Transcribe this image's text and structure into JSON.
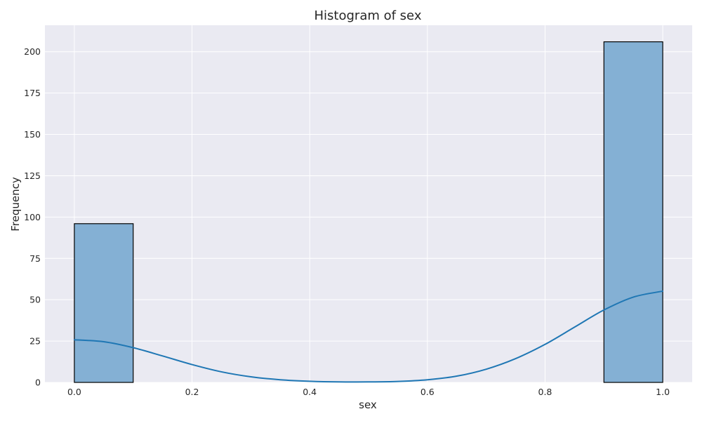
{
  "chart_data": {
    "type": "bar",
    "subtype": "histogram",
    "title": "Histogram of sex",
    "xlabel": "sex",
    "ylabel": "Frequency",
    "xlim": [
      -0.05,
      1.05
    ],
    "ylim": [
      0,
      216
    ],
    "xticks": [
      "0.0",
      "0.2",
      "0.4",
      "0.6",
      "0.8",
      "1.0"
    ],
    "yticks": [
      "0",
      "25",
      "50",
      "75",
      "100",
      "125",
      "150",
      "175",
      "200"
    ],
    "bins": [
      {
        "x0": 0.0,
        "x1": 0.1,
        "value": 96
      },
      {
        "x0": 0.1,
        "x1": 0.2,
        "value": 0
      },
      {
        "x0": 0.2,
        "x1": 0.3,
        "value": 0
      },
      {
        "x0": 0.3,
        "x1": 0.4,
        "value": 0
      },
      {
        "x0": 0.4,
        "x1": 0.5,
        "value": 0
      },
      {
        "x0": 0.5,
        "x1": 0.6,
        "value": 0
      },
      {
        "x0": 0.6,
        "x1": 0.7,
        "value": 0
      },
      {
        "x0": 0.7,
        "x1": 0.8,
        "value": 0
      },
      {
        "x0": 0.8,
        "x1": 0.9,
        "value": 0
      },
      {
        "x0": 0.9,
        "x1": 1.0,
        "value": 206
      }
    ],
    "kde": {
      "x": [
        0.0,
        0.05,
        0.1,
        0.15,
        0.2,
        0.25,
        0.3,
        0.35,
        0.4,
        0.45,
        0.5,
        0.55,
        0.6,
        0.65,
        0.7,
        0.75,
        0.8,
        0.85,
        0.9,
        0.95,
        1.0
      ],
      "y": [
        25.8,
        24.6,
        21.0,
        16.0,
        10.8,
        6.4,
        3.4,
        1.6,
        0.7,
        0.3,
        0.3,
        0.6,
        1.6,
        3.8,
        8.0,
        14.4,
        23.0,
        33.4,
        43.8,
        51.6,
        55.2
      ]
    },
    "grid": true,
    "colors": {
      "background": "#eaeaf2",
      "grid": "#ffffff",
      "bar_fill": "#84b0d4",
      "bar_edge": "#000000",
      "kde_line": "#1f77b4",
      "text": "#262626"
    }
  }
}
